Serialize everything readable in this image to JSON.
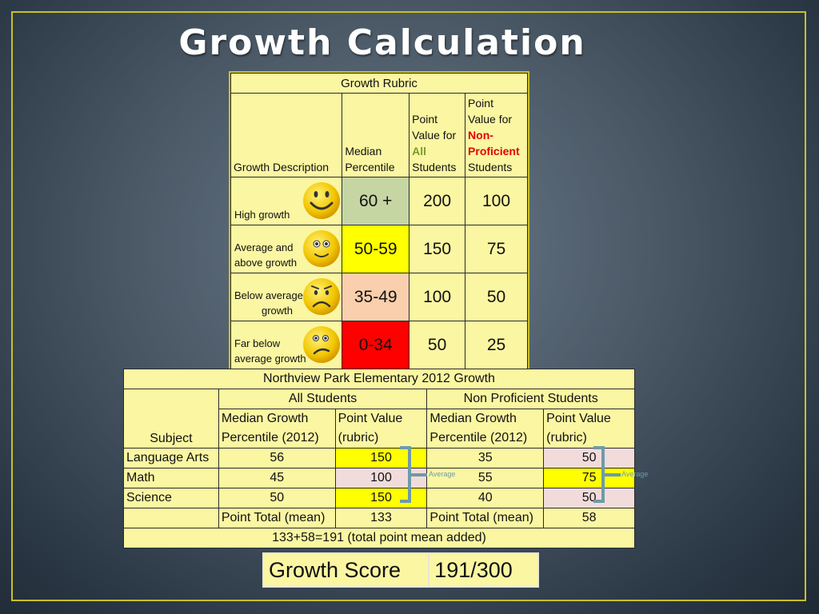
{
  "slide": {
    "title": "Growth Calculation"
  },
  "rubric": {
    "title": "Growth Rubric",
    "headers": {
      "description": "Growth Description",
      "median": [
        "Median",
        "Percentile"
      ],
      "all": {
        "line1": "Point",
        "line2": "Value for",
        "highlight": "All",
        "line4": "Students"
      },
      "nonprof": {
        "line1": "Point",
        "line2": "Value for",
        "highlight1": "Non-",
        "highlight2": "Proficient",
        "line5": "Students"
      }
    },
    "rows": [
      {
        "desc": [
          "High growth"
        ],
        "percentile": "60 +",
        "all": "200",
        "nonprof": "100",
        "color": "#c5d6a3",
        "face": "big-smile-face-icon"
      },
      {
        "desc": [
          "Average and",
          "above   growth"
        ],
        "percentile": "50-59",
        "all": "150",
        "nonprof": "75",
        "color": "#ffff00",
        "face": "smile-face-icon"
      },
      {
        "desc": [
          "Below average",
          "growth"
        ],
        "percentile": "35-49",
        "all": "100",
        "nonprof": "50",
        "color": "#f9cfad",
        "face": "frown-face-icon"
      },
      {
        "desc": [
          "Far below",
          "average growth"
        ],
        "percentile": "0-34",
        "all": "50",
        "nonprof": "25",
        "color": "#ff0000",
        "face": "sad-face-icon"
      }
    ]
  },
  "northview": {
    "title": "Northview Park Elementary 2012 Growth",
    "group_all": "All Students",
    "group_nonprof": "Non Proficient Students",
    "subject_header": "Subject",
    "median_header": [
      "Median Growth",
      "Percentile (2012)"
    ],
    "point_header": [
      "Point Value",
      "(rubric)"
    ],
    "rows": [
      {
        "subject": "Language Arts",
        "all_median": "56",
        "all_points": "150",
        "np_median": "35",
        "np_points": "50"
      },
      {
        "subject": "Math",
        "all_median": "45",
        "all_points": "100",
        "np_median": "55",
        "np_points": "75"
      },
      {
        "subject": "Science",
        "all_median": "50",
        "all_points": "150",
        "np_median": "40",
        "np_points": "50"
      }
    ],
    "total_label": "Point Total (mean)",
    "all_total": "133",
    "np_total": "58",
    "sum_note": "133+58=191 (total point mean added)",
    "average_label": "Average",
    "colors": {
      "yellow": "#ffff00",
      "pink": "#f2dcdb",
      "bracket": "#6d9ba8"
    }
  },
  "score": {
    "label": "Growth Score",
    "value": "191/300"
  }
}
